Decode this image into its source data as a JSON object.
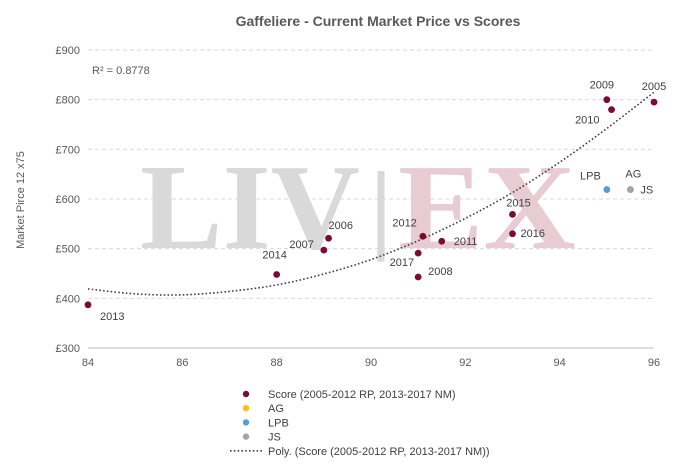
{
  "chart_data": {
    "type": "scatter",
    "title": "Gaffeliere - Current Market Price vs Scores",
    "xlabel": "",
    "ylabel": "Market Pirce 12 x75",
    "xlim": [
      84,
      96
    ],
    "ylim": [
      300,
      900
    ],
    "x_ticks": [
      "84",
      "86",
      "88",
      "90",
      "92",
      "94",
      "96"
    ],
    "y_ticks": [
      "£300",
      "£400",
      "£500",
      "£600",
      "£700",
      "£800",
      "£900"
    ],
    "grid": "horizontal-dashed",
    "annotation": "R² = 0.8778",
    "watermark": {
      "left": "LIV",
      "sep": "|",
      "right": "EX"
    },
    "colors": {
      "score": "#7b0c30",
      "ag": "#ffc000",
      "lpb": "#5b9bd5",
      "js": "#a5a5a5",
      "trend": "#404040",
      "wm_grey": "#d9d9d9",
      "wm_pink": "#e7ccd4"
    },
    "series": [
      {
        "name": "Score (2005-2012 RP, 2013-2017 NM)",
        "points": [
          {
            "label": "2013",
            "x": 84,
            "y": 387
          },
          {
            "label": "2014",
            "x": 88,
            "y": 448
          },
          {
            "label": "2007",
            "x": 89,
            "y": 497
          },
          {
            "label": "2006",
            "x": 89.1,
            "y": 521
          },
          {
            "label": "2008",
            "x": 91,
            "y": 443
          },
          {
            "label": "2017",
            "x": 91,
            "y": 491
          },
          {
            "label": "2012",
            "x": 91.1,
            "y": 525
          },
          {
            "label": "2011",
            "x": 91.5,
            "y": 515
          },
          {
            "label": "2015",
            "x": 93,
            "y": 569
          },
          {
            "label": "2016",
            "x": 93,
            "y": 530
          },
          {
            "label": "2009",
            "x": 95,
            "y": 800
          },
          {
            "label": "2010",
            "x": 95.1,
            "y": 780
          },
          {
            "label": "2005",
            "x": 96,
            "y": 795
          }
        ]
      },
      {
        "name": "AG",
        "points": [
          {
            "label": "AG",
            "x": 95.5,
            "y": 619
          }
        ]
      },
      {
        "name": "LPB",
        "points": [
          {
            "label": "LPB",
            "x": 95,
            "y": 619
          }
        ]
      },
      {
        "name": "JS",
        "points": [
          {
            "label": "JS",
            "x": 95.5,
            "y": 619
          }
        ]
      }
    ],
    "trendline": {
      "name": "Poly. (Score (2005-2012 RP, 2013-2017 NM))",
      "type": "polynomial-2",
      "samples": [
        {
          "x": 84,
          "y": 419
        },
        {
          "x": 85,
          "y": 409
        },
        {
          "x": 86,
          "y": 407
        },
        {
          "x": 87,
          "y": 414
        },
        {
          "x": 88,
          "y": 427
        },
        {
          "x": 89,
          "y": 449
        },
        {
          "x": 90,
          "y": 478
        },
        {
          "x": 91,
          "y": 516
        },
        {
          "x": 92,
          "y": 561
        },
        {
          "x": 93,
          "y": 613
        },
        {
          "x": 94,
          "y": 674
        },
        {
          "x": 95,
          "y": 742
        },
        {
          "x": 96,
          "y": 815
        }
      ]
    },
    "legend": {
      "position": "bottom",
      "entries": [
        {
          "label": "Score (2005-2012 RP, 2013-2017 NM)",
          "kind": "marker",
          "color": "#7b0c30"
        },
        {
          "label": "AG",
          "kind": "marker",
          "color": "#ffc000"
        },
        {
          "label": "LPB",
          "kind": "marker",
          "color": "#5b9bd5"
        },
        {
          "label": "JS",
          "kind": "marker",
          "color": "#a5a5a5"
        },
        {
          "label": "Poly. (Score (2005-2012 RP, 2013-2017 NM))",
          "kind": "dotted-line",
          "color": "#404040"
        }
      ]
    }
  }
}
